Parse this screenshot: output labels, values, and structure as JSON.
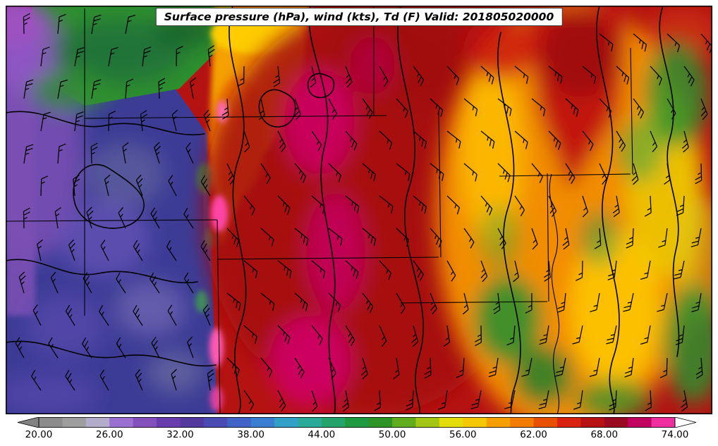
{
  "title_bar": {
    "text": "Surface pressure (hPa), wind (kts), Td (F) Valid: 201805020000"
  },
  "colorbar": {
    "tick_labels": [
      "20.00",
      "26.00",
      "32.00",
      "38.00",
      "44.00",
      "50.00",
      "56.00",
      "62.00",
      "68.00",
      "74.00"
    ],
    "tick_values": [
      20,
      26,
      32,
      38,
      44,
      50,
      56,
      62,
      68,
      74
    ],
    "value_range": [
      20,
      74
    ],
    "under_arrow_color": "#828282",
    "over_arrow_color": "#ffffff",
    "segment_colors": [
      "#8c8c8c",
      "#9e9e9e",
      "#b2abc9",
      "#9b6fd0",
      "#8350bc",
      "#6a3dae",
      "#543a9f",
      "#4a4cb4",
      "#4163c8",
      "#3a7ed2",
      "#33a0c8",
      "#2baa9a",
      "#24a36a",
      "#1f9a40",
      "#2d9426",
      "#62ad1e",
      "#a3c614",
      "#e3dd0b",
      "#f6c703",
      "#f5a000",
      "#f17c00",
      "#e85000",
      "#d92310",
      "#b81114",
      "#9a0a20",
      "#c20260",
      "#ef2f9f"
    ]
  },
  "map": {
    "shaded_field": "Td (F)",
    "contour_field": "Surface pressure (hPa)",
    "vector_field": "wind (kts)",
    "valid_time": "201805020000"
  },
  "chart_data": {
    "type": "heatmap",
    "title": "Surface pressure (hPa), wind (kts), Td (F) Valid: 201805020000",
    "shaded_variable": "dewpoint temperature (F)",
    "overlays": [
      "surface pressure contours (hPa)",
      "wind barbs (kts)"
    ],
    "colorbar_tick_labels": [
      "20.00",
      "26.00",
      "32.00",
      "38.00",
      "44.00",
      "50.00",
      "56.00",
      "62.00",
      "68.00",
      "74.00"
    ],
    "colorbar_range": [
      20,
      74
    ]
  }
}
